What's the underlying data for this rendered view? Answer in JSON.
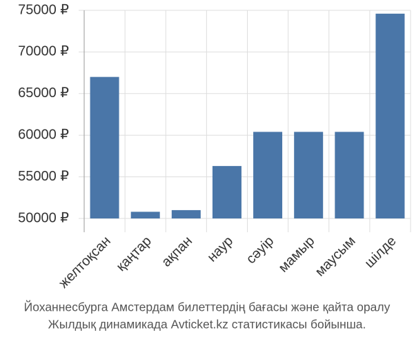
{
  "chart_data": {
    "type": "bar",
    "title": "Йоханнесбурга Амстердам билеттердің бағасы және қайта оралу",
    "subtitle": "Жылдық динамикада Avticket.kz статистикасы бойынша.",
    "categories": [
      "желтоқсан",
      "қаңтар",
      "ақпан",
      "наур",
      "сәуір",
      "мамыр",
      "маусым",
      "шілде"
    ],
    "values": [
      67000,
      50800,
      51000,
      56300,
      60400,
      60400,
      60400,
      74600
    ],
    "color": "#4a76a8",
    "ylim": [
      50000,
      75000
    ],
    "yticks": [
      {
        "value": 50000,
        "label": "50000 ₽"
      },
      {
        "value": 55000,
        "label": "55000 ₽"
      },
      {
        "value": 60000,
        "label": "60000 ₽"
      },
      {
        "value": 65000,
        "label": "65000 ₽"
      },
      {
        "value": 70000,
        "label": "70000 ₽"
      },
      {
        "value": 75000,
        "label": "75000 ₽"
      }
    ],
    "grid": true
  }
}
